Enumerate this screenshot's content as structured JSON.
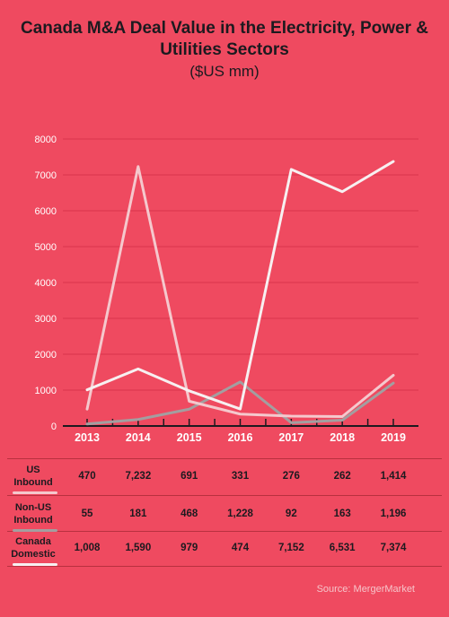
{
  "chart_data": {
    "type": "line",
    "title": "Canada M&A Deal Value in the Electricity, Power & Utilities Sectors",
    "subtitle": "($US mm)",
    "x": [
      "2013",
      "2014",
      "2015",
      "2016",
      "2017",
      "2018",
      "2019"
    ],
    "yticks": [
      "0",
      "1000",
      "2000",
      "3000",
      "4000",
      "5000",
      "6000",
      "7000",
      "8000"
    ],
    "ylim": [
      0,
      8000
    ],
    "grid": true,
    "series": [
      {
        "name": "US Inbound",
        "color": "#f5c8cd",
        "values": [
          470,
          7232,
          691,
          331,
          276,
          262,
          1414
        ],
        "labels": [
          "470",
          "7,232",
          "691",
          "331",
          "276",
          "262",
          "1,414"
        ]
      },
      {
        "name": "Non-US Inbound",
        "color": "#a39ea0",
        "values": [
          55,
          181,
          468,
          1228,
          92,
          163,
          1196
        ],
        "labels": [
          "55",
          "181",
          "468",
          "1,228",
          "92",
          "163",
          "1,196"
        ]
      },
      {
        "name": "Canada Domestic",
        "color": "#f7f0f1",
        "values": [
          1008,
          1590,
          979,
          474,
          7152,
          6531,
          7374
        ],
        "labels": [
          "1,008",
          "1,590",
          "979",
          "474",
          "7,152",
          "6,531",
          "7,374"
        ]
      }
    ]
  },
  "table_rows": [
    {
      "label_line1": "US",
      "label_line2": "Inbound",
      "underline_color": "#f5c8cd"
    },
    {
      "label_line1": "Non-US",
      "label_line2": "Inbound",
      "underline_color": "#a39ea0"
    },
    {
      "label_line1": "Canada",
      "label_line2": "Domestic",
      "underline_color": "#f7f0f1"
    }
  ],
  "source": "Source: MergerMarket",
  "colors": {
    "background": "#ef4a60",
    "gridline": "#d8344c",
    "text": "#1c1a1f"
  }
}
